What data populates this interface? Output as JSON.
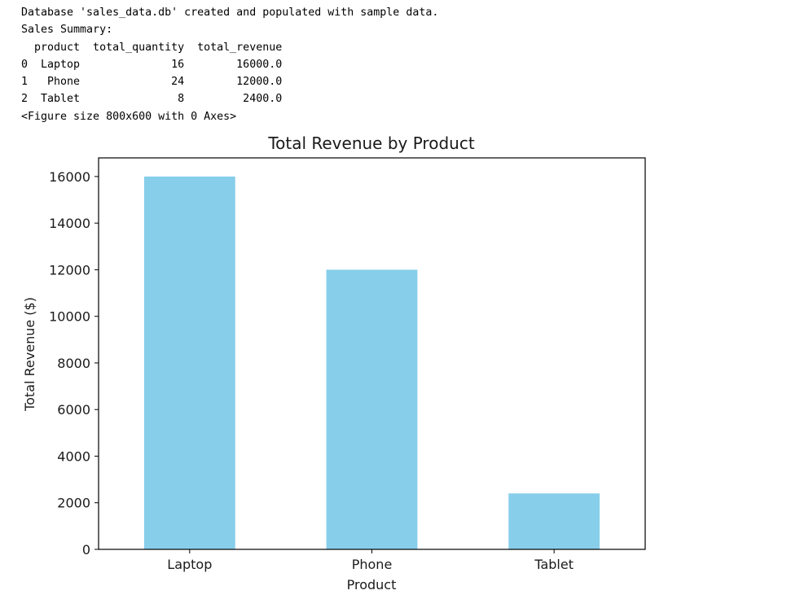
{
  "console": {
    "lines": [
      "Database 'sales_data.db' created and populated with sample data.",
      "Sales Summary:",
      "  product  total_quantity  total_revenue",
      "0  Laptop              16        16000.0",
      "1   Phone              24        12000.0",
      "2  Tablet               8         2400.0",
      "<Figure size 800x600 with 0 Axes>"
    ]
  },
  "chart_data": {
    "type": "bar",
    "title": "Total Revenue by Product",
    "xlabel": "Product",
    "ylabel": "Total Revenue ($)",
    "categories": [
      "Laptop",
      "Phone",
      "Tablet"
    ],
    "values": [
      16000,
      12000,
      2400
    ],
    "ylim": [
      0,
      16800
    ],
    "yticks": [
      0,
      2000,
      4000,
      6000,
      8000,
      10000,
      12000,
      14000,
      16000
    ],
    "bar_color": "#87ceeb",
    "grid": false,
    "legend": false
  }
}
